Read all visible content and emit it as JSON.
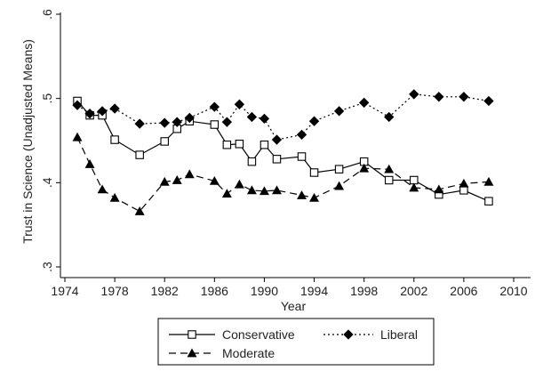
{
  "chart_data": {
    "type": "line",
    "xlabel": "Year",
    "ylabel": "Trust in Science (Unadjusted Means)",
    "xlim": [
      1974,
      2010
    ],
    "ylim": [
      0.3,
      0.6
    ],
    "xticks": [
      1974,
      1978,
      1982,
      1986,
      1990,
      1994,
      1998,
      2002,
      2006,
      2010
    ],
    "x_tick_labels": [
      "1974",
      "1978",
      "1982",
      "1986",
      "1990",
      "1994",
      "1998",
      "2002",
      "2006",
      "2010"
    ],
    "yticks": [
      0.3,
      0.4,
      0.5,
      0.6
    ],
    "y_tick_labels": [
      ".3",
      ".4",
      ".5",
      ".6"
    ],
    "grid": false,
    "legend_position": "bottom",
    "series": [
      {
        "name": "Conservative",
        "line_style": "solid",
        "marker": "hollow-square",
        "color": "#000000",
        "points": [
          [
            1975,
            0.497
          ],
          [
            1976,
            0.48
          ],
          [
            1977,
            0.48
          ],
          [
            1978,
            0.451
          ],
          [
            1980,
            0.433
          ],
          [
            1982,
            0.449
          ],
          [
            1983,
            0.464
          ],
          [
            1984,
            0.473
          ],
          [
            1986,
            0.469
          ],
          [
            1987,
            0.445
          ],
          [
            1988,
            0.446
          ],
          [
            1989,
            0.425
          ],
          [
            1990,
            0.445
          ],
          [
            1991,
            0.428
          ],
          [
            1993,
            0.431
          ],
          [
            1994,
            0.412
          ],
          [
            1996,
            0.416
          ],
          [
            1998,
            0.425
          ],
          [
            2000,
            0.403
          ],
          [
            2002,
            0.403
          ],
          [
            2004,
            0.386
          ],
          [
            2006,
            0.391
          ],
          [
            2008,
            0.378
          ]
        ]
      },
      {
        "name": "Liberal",
        "line_style": "dotted",
        "marker": "filled-diamond",
        "color": "#000000",
        "points": [
          [
            1975,
            0.492
          ],
          [
            1976,
            0.482
          ],
          [
            1977,
            0.485
          ],
          [
            1978,
            0.488
          ],
          [
            1980,
            0.47
          ],
          [
            1982,
            0.471
          ],
          [
            1983,
            0.472
          ],
          [
            1984,
            0.477
          ],
          [
            1986,
            0.49
          ],
          [
            1987,
            0.472
          ],
          [
            1988,
            0.493
          ],
          [
            1989,
            0.478
          ],
          [
            1990,
            0.476
          ],
          [
            1991,
            0.451
          ],
          [
            1993,
            0.457
          ],
          [
            1994,
            0.473
          ],
          [
            1996,
            0.485
          ],
          [
            1998,
            0.495
          ],
          [
            2000,
            0.478
          ],
          [
            2002,
            0.505
          ],
          [
            2004,
            0.502
          ],
          [
            2006,
            0.502
          ],
          [
            2008,
            0.497
          ]
        ]
      },
      {
        "name": "Moderate",
        "line_style": "dashed",
        "marker": "filled-triangle",
        "color": "#000000",
        "points": [
          [
            1975,
            0.454
          ],
          [
            1976,
            0.422
          ],
          [
            1977,
            0.392
          ],
          [
            1978,
            0.382
          ],
          [
            1980,
            0.366
          ],
          [
            1982,
            0.401
          ],
          [
            1983,
            0.403
          ],
          [
            1984,
            0.41
          ],
          [
            1986,
            0.402
          ],
          [
            1987,
            0.387
          ],
          [
            1988,
            0.398
          ],
          [
            1989,
            0.391
          ],
          [
            1990,
            0.39
          ],
          [
            1991,
            0.391
          ],
          [
            1993,
            0.385
          ],
          [
            1994,
            0.382
          ],
          [
            1996,
            0.396
          ],
          [
            1998,
            0.417
          ],
          [
            2000,
            0.416
          ],
          [
            2002,
            0.394
          ],
          [
            2004,
            0.392
          ],
          [
            2006,
            0.399
          ],
          [
            2008,
            0.401
          ]
        ]
      }
    ],
    "legend_order": [
      "Conservative",
      "Liberal",
      "Moderate"
    ]
  }
}
